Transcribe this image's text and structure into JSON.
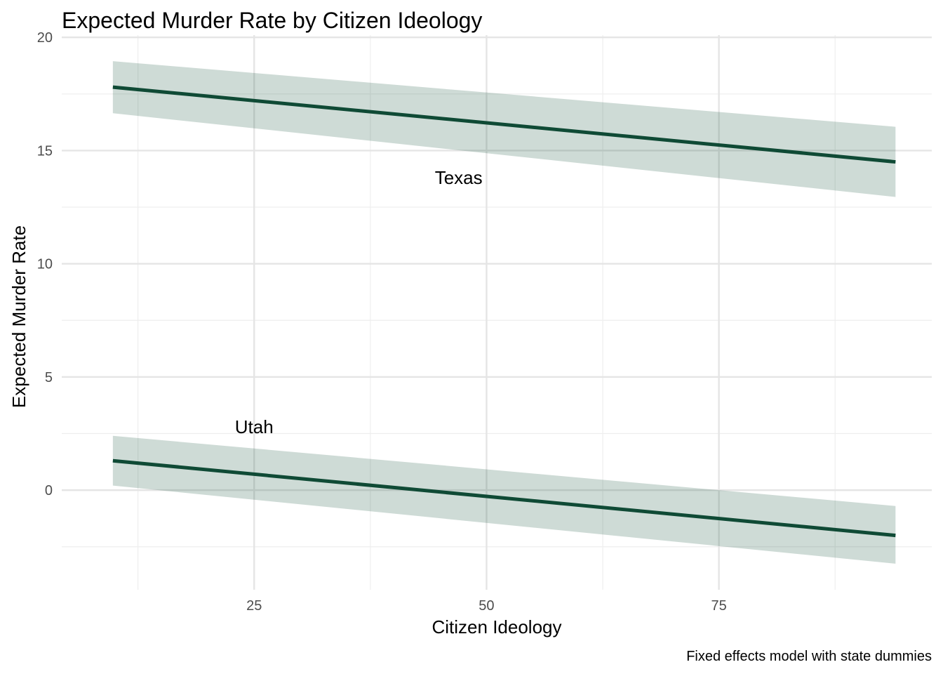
{
  "chart_data": {
    "type": "line",
    "title": "Expected Murder Rate by Citizen Ideology",
    "xlabel": "Citizen Ideology",
    "ylabel": "Expected Murder Rate",
    "caption": "Fixed effects model with state dummies",
    "xlim": [
      4.3,
      97.9
    ],
    "ylim": [
      -4.4,
      20.1
    ],
    "x_major_ticks": [
      25,
      50,
      75
    ],
    "x_minor_ticks": [
      12.5,
      37.5,
      62.5,
      87.5
    ],
    "y_major_ticks": [
      0,
      5,
      10,
      15,
      20
    ],
    "y_minor_ticks": [
      -2.5,
      2.5,
      7.5,
      12.5,
      17.5
    ],
    "x_tick_labels": [
      "25",
      "50",
      "75"
    ],
    "y_tick_labels": [
      "0",
      "5",
      "10",
      "15",
      "20"
    ],
    "grid": true,
    "legend": "none",
    "line_color": "#0f4a35",
    "band_color": "#0a4a32",
    "series": [
      {
        "name": "Texas",
        "x": [
          9.8,
          94.0
        ],
        "y": [
          17.8,
          14.5
        ],
        "ci_lower": [
          16.65,
          12.95
        ],
        "ci_upper": [
          18.95,
          16.05
        ]
      },
      {
        "name": "Utah",
        "x": [
          9.8,
          94.0
        ],
        "y": [
          1.3,
          -2.0
        ],
        "ci_lower": [
          0.2,
          -3.25
        ],
        "ci_upper": [
          2.4,
          -0.7
        ]
      }
    ],
    "annotations": [
      {
        "text": "Texas",
        "x": 47.0,
        "y": 13.8
      },
      {
        "text": "Utah",
        "x": 25.0,
        "y": 2.8
      }
    ]
  }
}
